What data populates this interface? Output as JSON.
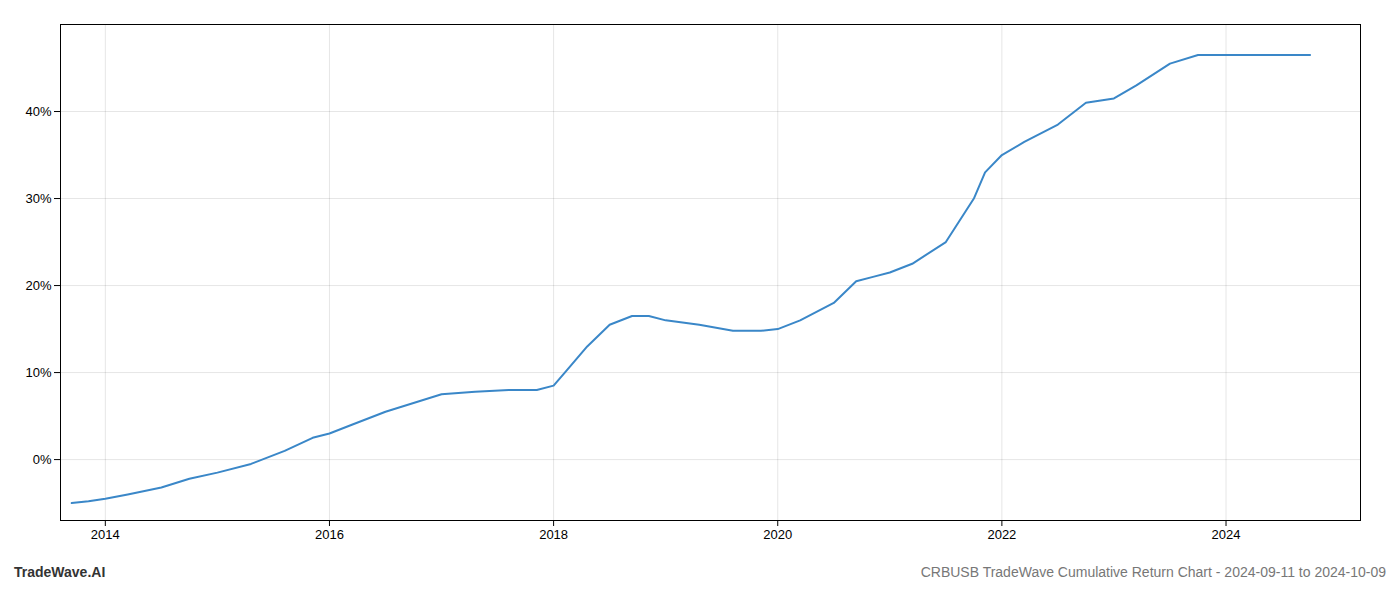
{
  "chart_data": {
    "type": "line",
    "x": [
      2013.7,
      2013.85,
      2014.0,
      2014.2,
      2014.5,
      2014.75,
      2015.0,
      2015.3,
      2015.6,
      2015.85,
      2016.0,
      2016.2,
      2016.5,
      2016.75,
      2017.0,
      2017.3,
      2017.6,
      2017.85,
      2018.0,
      2018.1,
      2018.3,
      2018.5,
      2018.7,
      2018.85,
      2019.0,
      2019.3,
      2019.6,
      2019.85,
      2020.0,
      2020.2,
      2020.5,
      2020.7,
      2020.85,
      2021.0,
      2021.2,
      2021.5,
      2021.75,
      2021.85,
      2022.0,
      2022.2,
      2022.5,
      2022.75,
      2023.0,
      2023.2,
      2023.5,
      2023.75,
      2024.0,
      2024.25,
      2024.5,
      2024.75
    ],
    "values": [
      -5.0,
      -4.8,
      -4.5,
      -4.0,
      -3.2,
      -2.2,
      -1.5,
      -0.5,
      1.0,
      2.5,
      3.0,
      4.0,
      5.5,
      6.5,
      7.5,
      7.8,
      8.0,
      8.0,
      8.5,
      10.0,
      13.0,
      15.5,
      16.5,
      16.5,
      16.0,
      15.5,
      14.8,
      14.8,
      15.0,
      16.0,
      18.0,
      20.5,
      21.0,
      21.5,
      22.5,
      25.0,
      30.0,
      33.0,
      35.0,
      36.5,
      38.5,
      41.0,
      41.5,
      43.0,
      45.5,
      46.5,
      46.5,
      46.5,
      46.5,
      46.5
    ],
    "color": "#3a87c8",
    "xlim": [
      2013.6,
      2025.2
    ],
    "xticks": [
      2014,
      2016,
      2018,
      2020,
      2022,
      2024
    ],
    "ylim": [
      -7,
      50
    ],
    "yticks": [
      {
        "value": 0,
        "label": "0%"
      },
      {
        "value": 10,
        "label": "10%"
      },
      {
        "value": 20,
        "label": "20%"
      },
      {
        "value": 30,
        "label": "30%"
      },
      {
        "value": 40,
        "label": "40%"
      }
    ],
    "grid": true,
    "annotations": [
      "TradeWave.AI",
      "CRBUSB TradeWave Cumulative Return Chart - 2024-09-11 to 2024-10-09"
    ]
  }
}
